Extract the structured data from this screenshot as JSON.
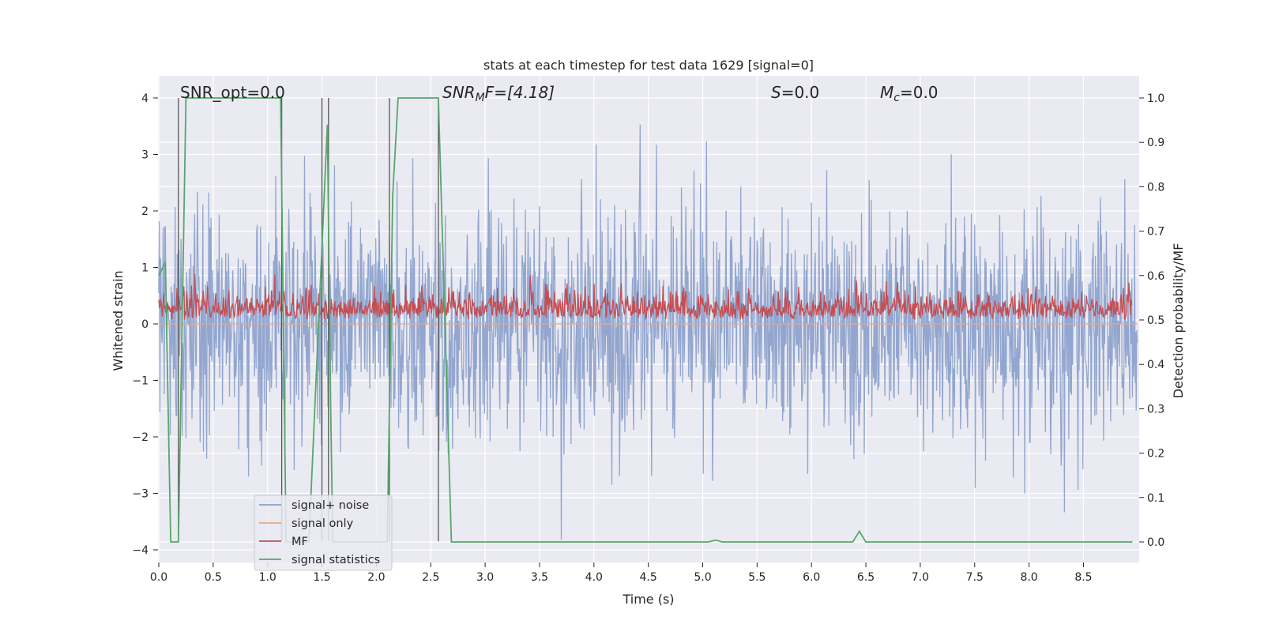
{
  "chart_data": {
    "type": "line",
    "title": "stats at each timestep for test data 1629 [signal=0]",
    "xlabel": "Time (s)",
    "ylabel": "Whitened strain",
    "y2label": "Detection probability/MF",
    "xlim": [
      0.0,
      9.0
    ],
    "ylim": [
      -4.2,
      4.4
    ],
    "y2lim": [
      -0.05,
      1.04
    ],
    "x_ticks": [
      "0.0",
      "0.5",
      "1.0",
      "1.5",
      "2.0",
      "2.5",
      "3.0",
      "3.5",
      "4.0",
      "4.5",
      "5.0",
      "5.5",
      "6.0",
      "6.5",
      "7.0",
      "7.5",
      "8.0",
      "8.5"
    ],
    "y_ticks": [
      "4",
      "3",
      "2",
      "1",
      "0",
      "−1",
      "−2",
      "−3",
      "−4"
    ],
    "y2_ticks": [
      "1.0",
      "0.9",
      "0.8",
      "0.7",
      "0.6",
      "0.5",
      "0.4",
      "0.3",
      "0.2",
      "0.1",
      "0.0"
    ],
    "grid": true,
    "legend_position": "lower-left",
    "annotations": {
      "snr_opt": "SNR_opt=0.0",
      "snr_mf_main": "SNR",
      "snr_mf_sub": "M",
      "snr_mf_rest": "F=[4.18]",
      "s_main": "S",
      "s_rest": "=0.0",
      "mc_main": "M",
      "mc_sub": "c",
      "mc_rest": "=0.0"
    },
    "series": [
      {
        "name": "signal+ noise",
        "color": "#8da2cc",
        "axis": "left",
        "description_stats": {
          "mean": 0.0,
          "typical_range": [
            -2.5,
            2.6
          ],
          "max": 4.0,
          "min": -4.0,
          "samples_per_second": 200
        }
      },
      {
        "name": "signal only",
        "color": "#e8a78a",
        "axis": "left",
        "x": [
          0.0,
          9.0
        ],
        "y": [
          0.0,
          0.0
        ]
      },
      {
        "name": "MF",
        "color": "#c44e52",
        "axis": "right",
        "description_stats": {
          "baseline": 0.5,
          "typical_range": [
            0.5,
            0.6
          ],
          "max": 0.62
        }
      },
      {
        "name": "signal statistics",
        "color": "#55a868",
        "axis": "right",
        "x": [
          0.0,
          0.06,
          0.11,
          0.18,
          0.25,
          1.12,
          1.14,
          1.17,
          1.38,
          1.55,
          1.58,
          1.6,
          2.0,
          2.1,
          2.15,
          2.2,
          2.57,
          2.69,
          5.05,
          5.12,
          5.18,
          6.38,
          6.44,
          6.5,
          8.95
        ],
        "y": [
          0.6,
          0.63,
          0.0,
          0.0,
          1.0,
          1.0,
          0.6,
          0.0,
          0.0,
          0.94,
          0.3,
          0.0,
          0.0,
          0.0,
          0.78,
          1.0,
          1.0,
          0.0,
          0.0,
          0.004,
          0.0,
          0.0,
          0.024,
          0.0,
          0.0
        ]
      }
    ],
    "vertical_markers": {
      "color": "#555555",
      "x": [
        0.18,
        1.13,
        1.5,
        1.56,
        2.12,
        2.57
      ],
      "ymin": -3.85,
      "ymax": 4.0
    }
  }
}
